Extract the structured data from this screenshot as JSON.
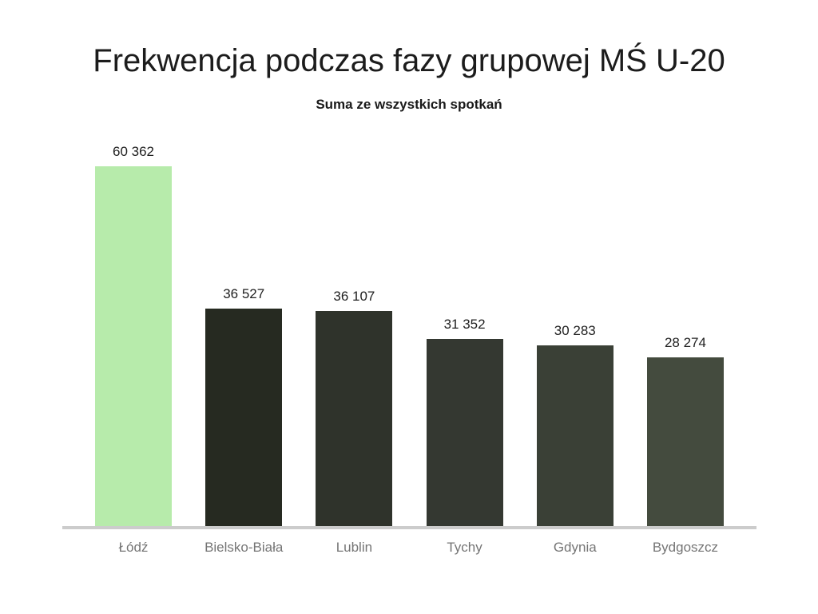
{
  "header": {
    "title": "Frekwencja podczas fazy grupowej MŚ U-20",
    "subtitle": "Suma ze wszystkich spotkań"
  },
  "chart_data": {
    "type": "bar",
    "title": "Frekwencja podczas fazy grupowej MŚ U-20",
    "subtitle": "Suma ze wszystkich spotkań",
    "categories": [
      "Łódź",
      "Bielsko-Biała",
      "Lublin",
      "Tychy",
      "Gdynia",
      "Bydgoszcz"
    ],
    "values": [
      60362,
      36527,
      36107,
      31352,
      30283,
      28274
    ],
    "value_labels": [
      "60 362",
      "36 527",
      "36 107",
      "31 352",
      "30 283",
      "28 274"
    ],
    "bar_colors": [
      "#b7ebab",
      "#262a21",
      "#2f332b",
      "#343831",
      "#3a4036",
      "#444b3e"
    ],
    "highlight_color": "#b7ebab",
    "axis_line_color": "#cccccc",
    "value_label_color": "#212121",
    "category_label_color": "#757575",
    "title_color": "#1c1c1c",
    "xlabel": "",
    "ylabel": "",
    "ylim": [
      0,
      60362
    ],
    "grid": false,
    "legend": false
  }
}
